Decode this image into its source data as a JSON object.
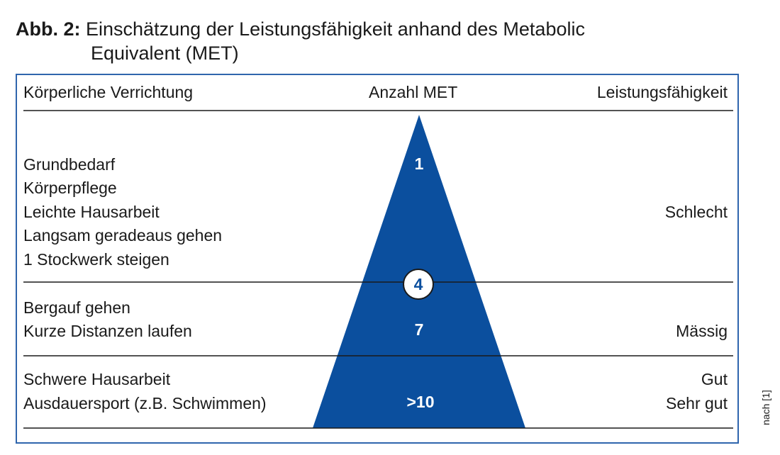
{
  "title": {
    "label": "Abb. 2:",
    "line1": "Einschätzung der Leistungsfähigkeit anhand des Metabolic",
    "line2": "Equivalent (MET)"
  },
  "headers": {
    "activity": "Körperliche Verrichtung",
    "met": "Anzahl MET",
    "capacity": "Leistungsfähigkeit"
  },
  "sections": [
    {
      "activities": [
        "Grundbedarf",
        "Körperpflege",
        "Leichte Hausarbeit",
        "Langsam geradeaus gehen",
        "1 Stockwerk steigen"
      ],
      "met": "1",
      "capacity": [
        "Schlecht"
      ]
    },
    {
      "activities": [
        "Bergauf gehen",
        "Kurze Distanzen laufen"
      ],
      "met": "7",
      "capacity": [
        "Mässig"
      ]
    },
    {
      "activities": [
        "Schwere Hausarbeit",
        "Ausdauersport (z.B. Schwimmen)"
      ],
      "met": ">10",
      "capacity": [
        "Gut",
        "Sehr gut"
      ]
    }
  ],
  "threshold": "4",
  "source": "nach [1]",
  "colors": {
    "triangle": "#0b4f9e",
    "border": "#2f65ad"
  }
}
